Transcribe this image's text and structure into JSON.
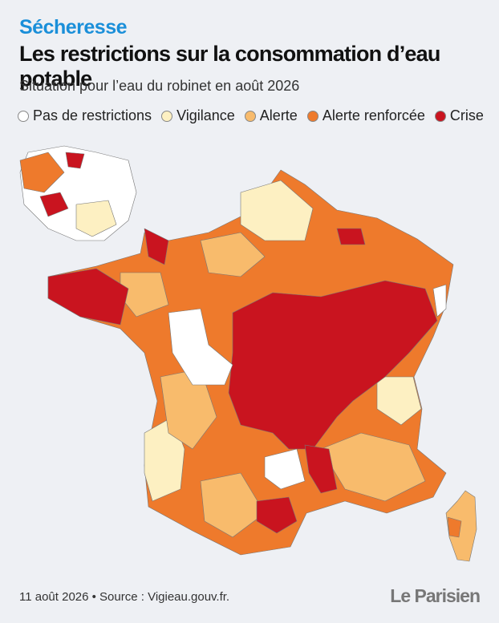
{
  "header": {
    "kicker": "Sécheresse",
    "title": "Les restrictions sur la consommation d’eau potable",
    "subtitle": "Situation pour l’eau du robinet en août 2026"
  },
  "legend": [
    {
      "label": "Pas de restrictions",
      "color": "#ffffff"
    },
    {
      "label": "Vigilance",
      "color": "#fdf0c2"
    },
    {
      "label": "Alerte",
      "color": "#f8bb6c"
    },
    {
      "label": "Alerte renforcée",
      "color": "#ee7a2c"
    },
    {
      "label": "Crise",
      "color": "#c9141f"
    }
  ],
  "footer": {
    "source": "11 août 2026 • Source : Vigieau.gouv.fr.",
    "brand": "Le Parisien"
  }
}
